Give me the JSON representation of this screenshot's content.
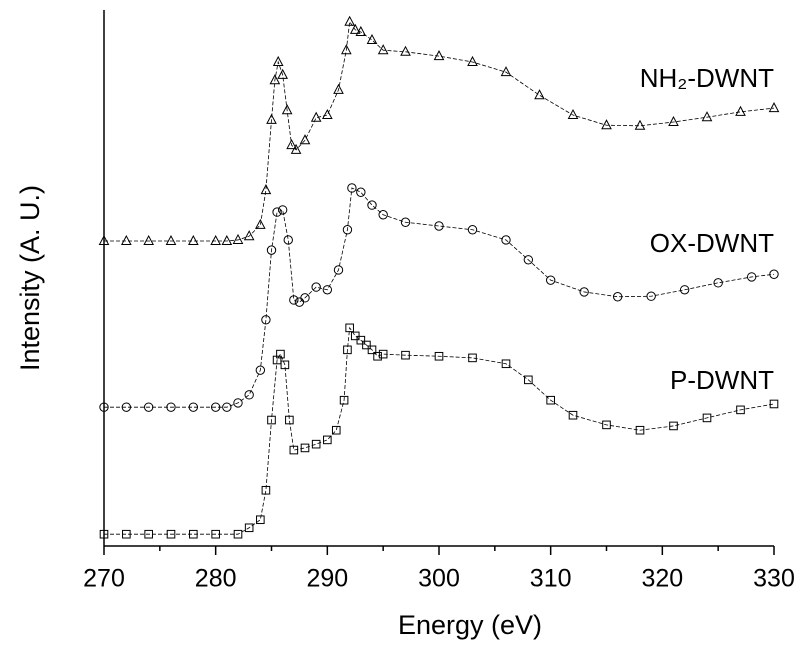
{
  "chart_data": {
    "type": "scatter",
    "xlabel": "Energy (eV)",
    "ylabel": "Intensity (A. U.)",
    "xlim": [
      270,
      330
    ],
    "xticks": [
      270,
      280,
      290,
      300,
      310,
      320,
      330
    ],
    "ylim": [
      0,
      100
    ],
    "series": [
      {
        "name": "NH₂-DWNT",
        "color": "#000000",
        "marker": "triangle",
        "x": [
          270,
          272,
          274,
          276,
          278,
          280,
          281,
          282,
          283,
          284,
          284.5,
          285,
          285.3,
          285.6,
          286,
          286.4,
          286.8,
          287.2,
          288,
          289,
          290,
          291,
          291.7,
          292,
          292.5,
          293,
          294,
          295,
          297,
          300,
          303,
          306,
          309,
          312,
          315,
          318,
          321,
          324,
          327,
          330
        ],
        "values": [
          56.9,
          56.9,
          56.9,
          56.9,
          56.9,
          56.9,
          56.9,
          57.1,
          57.8,
          59.9,
          66.4,
          79.5,
          86.9,
          90.3,
          87.9,
          81.3,
          74.8,
          73.9,
          75.7,
          79.9,
          80.4,
          85.1,
          92.5,
          97.8,
          96.3,
          95.9,
          94.4,
          92.5,
          92.2,
          91.4,
          90.3,
          88.4,
          84.1,
          80.4,
          78.5,
          78.4,
          79.1,
          80.0,
          81.0,
          81.7
        ]
      },
      {
        "name": "OX-DWNT",
        "color": "#000000",
        "marker": "circle",
        "x": [
          270,
          272,
          274,
          276,
          278,
          280,
          281,
          282,
          283,
          284,
          284.5,
          285,
          285.5,
          286,
          286.5,
          287,
          287.5,
          288,
          289,
          290,
          291,
          291.8,
          292.2,
          293,
          294,
          295,
          297,
          300,
          303,
          306,
          308,
          310,
          313,
          316,
          319,
          322,
          325,
          328,
          330
        ],
        "values": [
          25.9,
          25.9,
          25.9,
          25.9,
          25.9,
          25.9,
          25.9,
          26.7,
          28.2,
          32.8,
          42.2,
          55.2,
          62.3,
          62.7,
          57.1,
          45.9,
          45.5,
          46.3,
          48.3,
          47.8,
          51.5,
          59.0,
          66.8,
          66.0,
          63.6,
          61.8,
          60.4,
          59.7,
          59.0,
          57.1,
          53.4,
          49.6,
          47.4,
          46.5,
          46.6,
          47.8,
          49.1,
          50.2,
          50.7
        ]
      },
      {
        "name": "P-DWNT",
        "color": "#000000",
        "marker": "square",
        "x": [
          270,
          272,
          274,
          276,
          278,
          280,
          282,
          283,
          284,
          284.5,
          285,
          285.5,
          285.8,
          286.2,
          286.6,
          287,
          288,
          289,
          290,
          290.8,
          291.5,
          291.8,
          292,
          292.5,
          293,
          293.5,
          294,
          294.5,
          295,
          297,
          300,
          303,
          306,
          308,
          310,
          312,
          315,
          318,
          321,
          324,
          327,
          330
        ],
        "values": [
          2.2,
          2.2,
          2.2,
          2.2,
          2.2,
          2.2,
          2.2,
          3.4,
          4.9,
          10.4,
          23.5,
          34.7,
          35.8,
          33.8,
          23.5,
          17.9,
          18.3,
          19.0,
          19.8,
          21.6,
          27.2,
          36.6,
          40.7,
          39.2,
          38.4,
          37.5,
          36.6,
          35.4,
          35.8,
          35.6,
          35.4,
          35.1,
          34.0,
          31.0,
          27.2,
          24.4,
          22.6,
          21.6,
          22.4,
          23.9,
          25.4,
          26.5
        ]
      }
    ]
  }
}
